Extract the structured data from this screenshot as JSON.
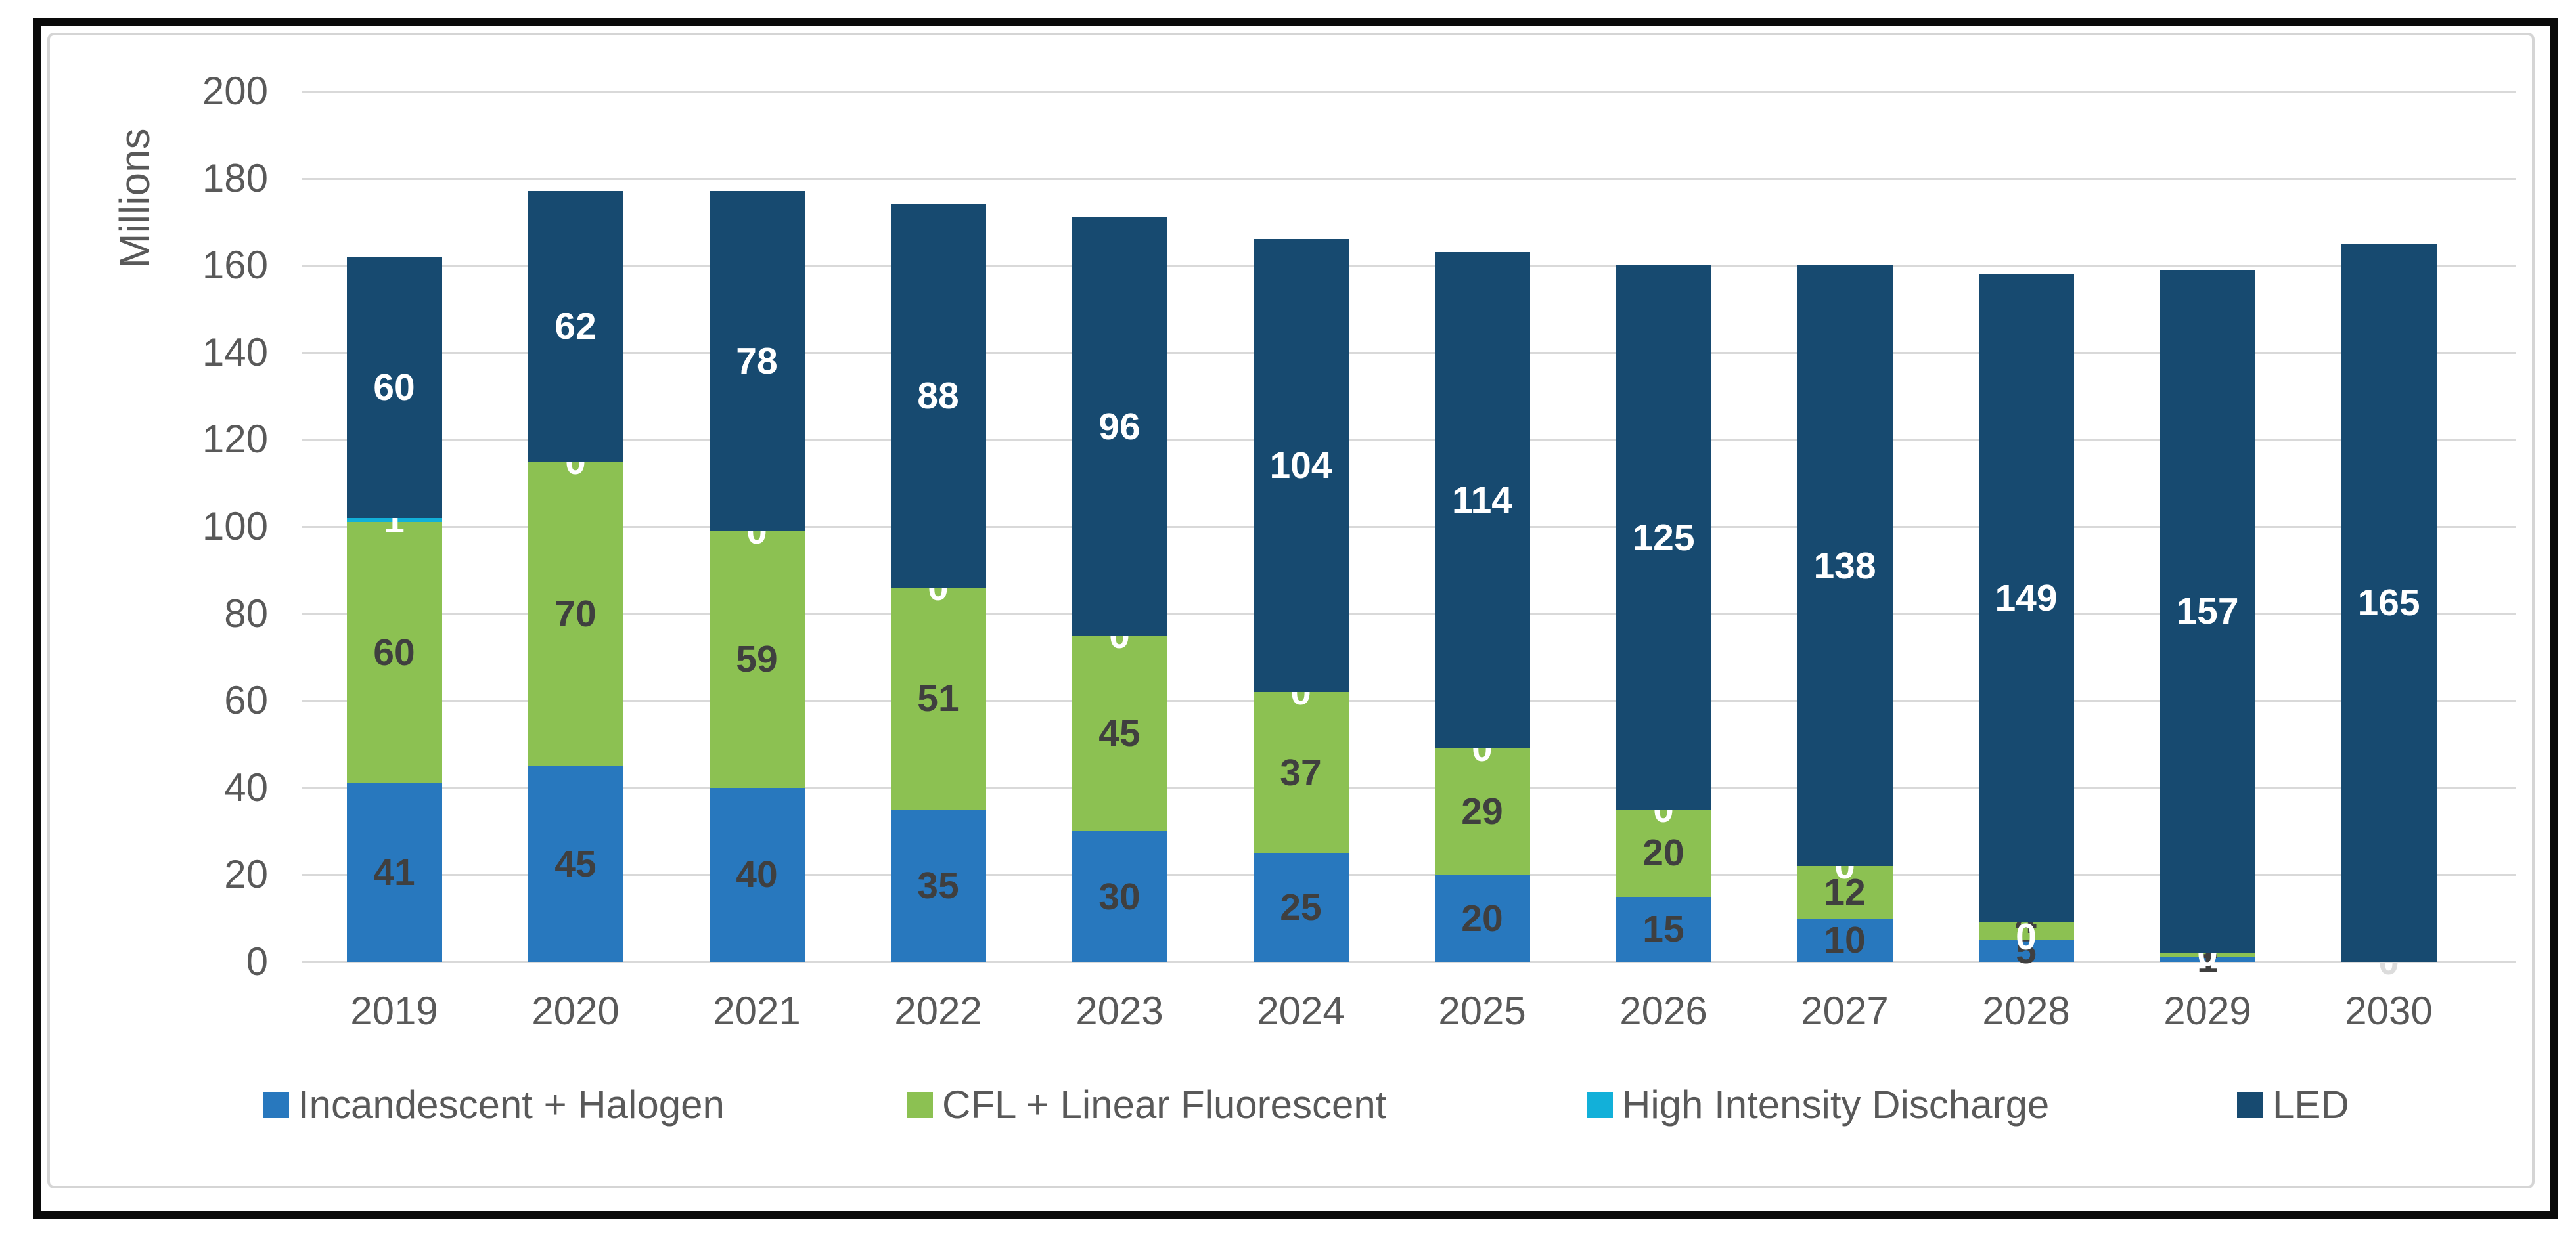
{
  "chart_data": {
    "type": "bar",
    "stacked": true,
    "title": "",
    "ylabel": "Millions",
    "xlabel": "",
    "ylim": [
      0,
      200
    ],
    "ytick_step": 20,
    "yticks": [
      "0",
      "20",
      "40",
      "60",
      "80",
      "100",
      "120",
      "140",
      "160",
      "180",
      "200"
    ],
    "grid": true,
    "legend_position": "bottom",
    "categories": [
      "2019",
      "2020",
      "2021",
      "2022",
      "2023",
      "2024",
      "2025",
      "2026",
      "2027",
      "2028",
      "2029",
      "2030"
    ],
    "series": [
      {
        "name": "Incandescent + Halogen",
        "color": "#2878BE",
        "label_color": "#3F3F3F",
        "values": [
          41,
          45,
          40,
          35,
          30,
          25,
          20,
          15,
          10,
          5,
          1,
          0
        ],
        "labels": [
          "41",
          "45",
          "40",
          "35",
          "30",
          "25",
          "20",
          "15",
          "10",
          "5",
          "1",
          ""
        ]
      },
      {
        "name": "CFL + Linear Fluorescent",
        "color": "#8CC152",
        "label_color": "#3F3F3F",
        "values": [
          60,
          70,
          59,
          51,
          45,
          37,
          29,
          20,
          12,
          4,
          1,
          0
        ],
        "labels": [
          "60",
          "70",
          "59",
          "51",
          "45",
          "37",
          "29",
          "20",
          "12",
          "4",
          "1",
          ""
        ]
      },
      {
        "name": "High Intensity Discharge",
        "color": "#12B0D9",
        "label_color": "#FFFFFF",
        "values": [
          1,
          0,
          0,
          0,
          0,
          0,
          0,
          0,
          0,
          0,
          0,
          0
        ],
        "labels": [
          "1",
          "0",
          "0",
          "0",
          "0",
          "0",
          "0",
          "0",
          "0",
          "0",
          "0",
          "0"
        ]
      },
      {
        "name": "LED",
        "color": "#174A70",
        "label_color": "#FFFFFF",
        "values": [
          60,
          62,
          78,
          88,
          96,
          104,
          114,
          125,
          138,
          149,
          157,
          165
        ],
        "labels": [
          "60",
          "62",
          "78",
          "88",
          "96",
          "104",
          "114",
          "125",
          "138",
          "149",
          "157",
          "165"
        ]
      }
    ]
  }
}
